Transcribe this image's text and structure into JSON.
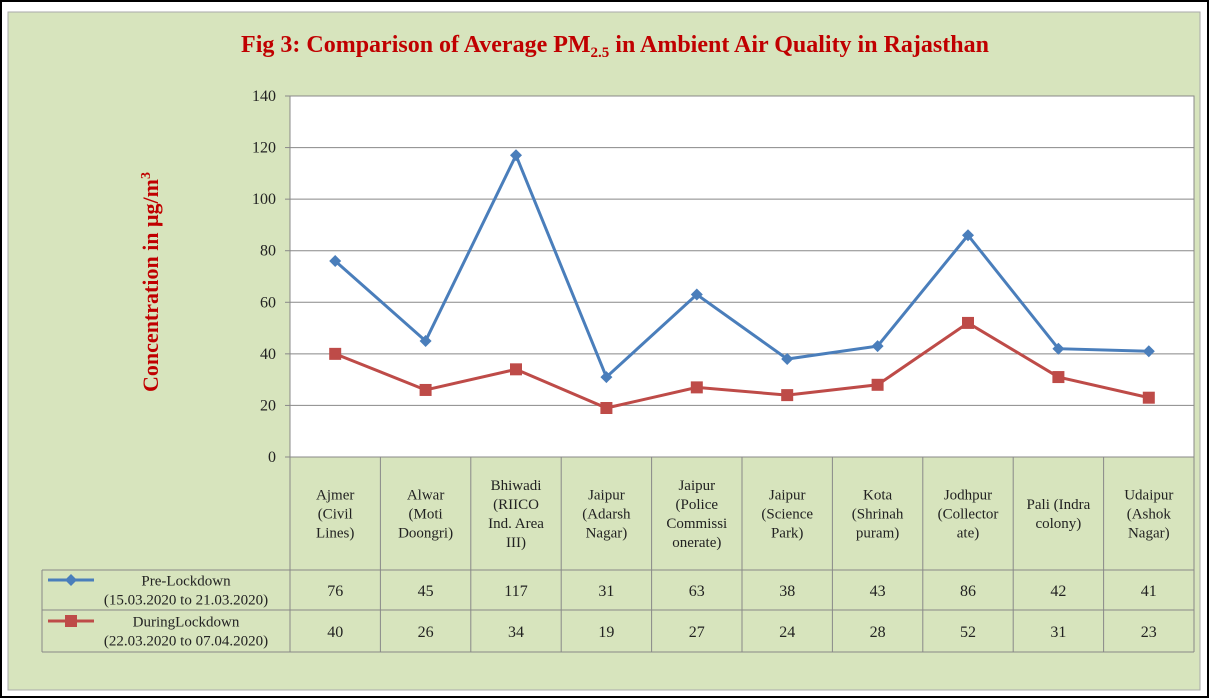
{
  "chart_data": {
    "type": "line",
    "title": "Fig 3: Comparison of Average PM",
    "title_subscript": "2.5",
    "title_end": "in Ambient Air Quality in Rajasthan",
    "ylabel": "Concentration in μg/m",
    "ylabel_superscript": "3",
    "categories": [
      "Ajmer\n(Civil\nLines)",
      "Alwar\n(Moti\nDoongri)",
      "Bhiwadi\n(RIICO\nInd. Area\nIII)",
      "Jaipur\n(Adarsh\nNagar)",
      "Jaipur\n(Police\nCommissi\nonerate)",
      "Jaipur\n(Science\nPark)",
      "Kota\n(Shrinah\npuram)",
      "Jodhpur\n(Collector\nate)",
      "Pali (Indra\ncolony)",
      "Udaipur\n(Ashok\nNagar)"
    ],
    "series": [
      {
        "name": "Pre-Lockdown\n(15.03.2020 to 21.03.2020)",
        "color": "#4a7ebb",
        "marker": "diamond",
        "values": [
          76,
          45,
          117,
          31,
          63,
          38,
          43,
          86,
          42,
          41
        ]
      },
      {
        "name": "DuringLockdown\n(22.03.2020 to 07.04.2020)",
        "color": "#be4b48",
        "marker": "square",
        "values": [
          40,
          26,
          34,
          19,
          27,
          24,
          28,
          52,
          31,
          23
        ]
      }
    ],
    "ylim": [
      0,
      140
    ],
    "yticks": [
      0,
      20,
      40,
      60,
      80,
      100,
      120,
      140
    ],
    "grid": true
  }
}
